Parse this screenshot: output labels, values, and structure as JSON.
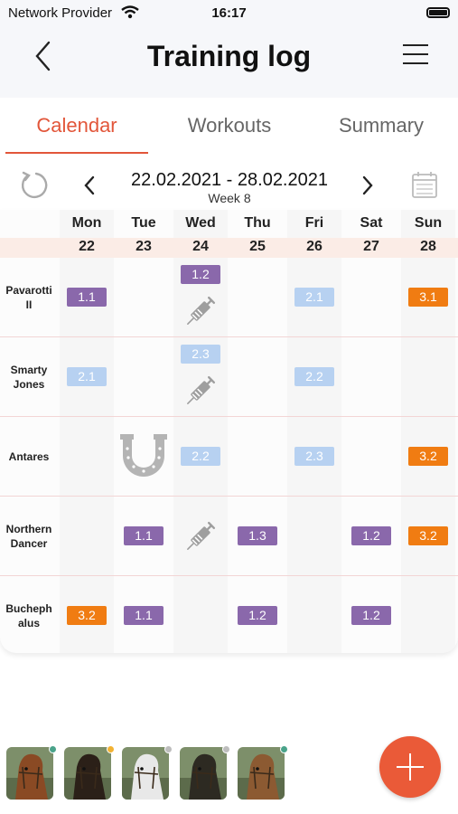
{
  "status": {
    "provider": "Network Provider",
    "time": "16:17"
  },
  "nav": {
    "title": "Training log",
    "back_icon": "chevron-left-icon",
    "menu_icon": "hamburger-menu-icon"
  },
  "tabs": [
    {
      "label": "Calendar",
      "active": true
    },
    {
      "label": "Workouts",
      "active": false
    },
    {
      "label": "Summary",
      "active": false
    }
  ],
  "week": {
    "range": "22.02.2021 - 28.02.2021",
    "label": "Week 8"
  },
  "days": [
    {
      "name": "Mon",
      "num": "22"
    },
    {
      "name": "Tue",
      "num": "23"
    },
    {
      "name": "Wed",
      "num": "24"
    },
    {
      "name": "Thu",
      "num": "25"
    },
    {
      "name": "Fri",
      "num": "26"
    },
    {
      "name": "Sat",
      "num": "27"
    },
    {
      "name": "Sun",
      "num": "28"
    }
  ],
  "horses": [
    {
      "name_lines": [
        "Pavarotti",
        "II"
      ],
      "sessions": [
        {
          "day": 0,
          "label": "1.1",
          "color": "purple"
        },
        {
          "day": 2,
          "label": "1.2",
          "color": "purple"
        },
        {
          "day": 4,
          "label": "2.1",
          "color": "blue"
        },
        {
          "day": 6,
          "label": "3.1",
          "color": "orange"
        }
      ],
      "icons": [
        {
          "day": 2,
          "type": "syringe-icon"
        }
      ]
    },
    {
      "name_lines": [
        "Smarty",
        "Jones"
      ],
      "sessions": [
        {
          "day": 0,
          "label": "2.1",
          "color": "blue"
        },
        {
          "day": 2,
          "label": "2.3",
          "color": "blue"
        },
        {
          "day": 4,
          "label": "2.2",
          "color": "blue"
        }
      ],
      "icons": [
        {
          "day": 2,
          "type": "syringe-icon"
        }
      ]
    },
    {
      "name_lines": [
        "Antares"
      ],
      "sessions": [
        {
          "day": 2,
          "label": "2.2",
          "color": "blue"
        },
        {
          "day": 4,
          "label": "2.3",
          "color": "blue"
        },
        {
          "day": 6,
          "label": "3.2",
          "color": "orange"
        }
      ],
      "icons": [
        {
          "day": 1,
          "type": "horseshoe-icon"
        }
      ]
    },
    {
      "name_lines": [
        "Northern",
        "Dancer"
      ],
      "sessions": [
        {
          "day": 1,
          "label": "1.1",
          "color": "purple"
        },
        {
          "day": 3,
          "label": "1.3",
          "color": "purple"
        },
        {
          "day": 5,
          "label": "1.2",
          "color": "purple"
        },
        {
          "day": 6,
          "label": "3.2",
          "color": "orange"
        }
      ],
      "icons": [
        {
          "day": 2,
          "type": "syringe-icon"
        }
      ]
    },
    {
      "name_lines": [
        "Bucheph",
        "alus"
      ],
      "sessions": [
        {
          "day": 0,
          "label": "3.2",
          "color": "orange"
        },
        {
          "day": 1,
          "label": "1.1",
          "color": "purple"
        },
        {
          "day": 3,
          "label": "1.2",
          "color": "purple"
        },
        {
          "day": 5,
          "label": "1.2",
          "color": "purple"
        }
      ],
      "icons": []
    }
  ],
  "colors": {
    "accent": "#e2563a",
    "purple": "#8a68ab",
    "blue": "#b7d1f1",
    "orange": "#f07c12",
    "fab": "#ea5a38"
  },
  "avatars": [
    {
      "coat": "#8a4a24",
      "dot": "#4aa38a"
    },
    {
      "coat": "#2b2018",
      "dot": "#f2b233"
    },
    {
      "coat": "#e8e8e8",
      "dot": "#bdbdbd"
    },
    {
      "coat": "#2d2a22",
      "dot": "#bdbdbd"
    },
    {
      "coat": "#8c5a32",
      "dot": "#4aa38a"
    }
  ],
  "fab": {
    "icon": "plus-icon"
  }
}
